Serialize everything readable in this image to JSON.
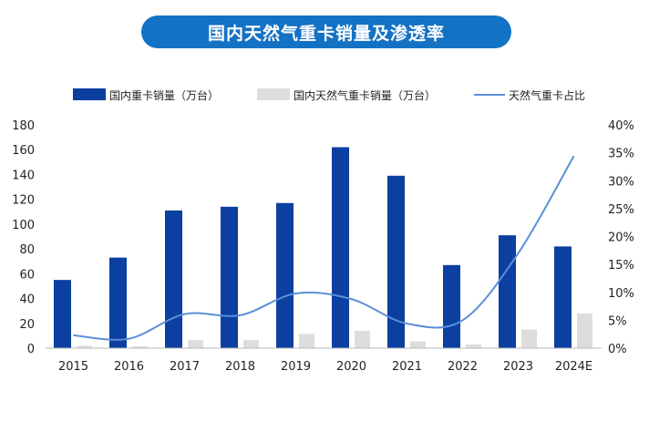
{
  "chart_data": {
    "type": "bar+line",
    "title": "国内天然气重卡销量及渗透率",
    "categories": [
      "2015",
      "2016",
      "2017",
      "2018",
      "2019",
      "2020",
      "2021",
      "2022",
      "2023",
      "2024E"
    ],
    "series": [
      {
        "name": "国内重卡销量（万台）",
        "type": "bar",
        "axis": "left",
        "color": "#0b3fa0",
        "values": [
          55,
          73,
          111,
          114,
          117,
          162,
          139,
          67,
          91,
          82
        ]
      },
      {
        "name": "国内天然气重卡销量（万台）",
        "type": "bar",
        "axis": "left",
        "color": "#dddddd",
        "values": [
          2,
          1.5,
          6.5,
          6.5,
          11.5,
          14,
          5.5,
          3,
          15,
          28
        ]
      },
      {
        "name": "天然气重卡占比",
        "type": "line",
        "axis": "right",
        "color": "#5b8fd6",
        "values": [
          2.3,
          1.7,
          6.1,
          5.9,
          9.8,
          8.8,
          4.4,
          5.0,
          17.0,
          34.4
        ]
      }
    ],
    "left_axis": {
      "ylim": [
        0,
        180
      ],
      "ticks": [
        "0",
        "20",
        "40",
        "60",
        "80",
        "100",
        "120",
        "140",
        "160",
        "180"
      ]
    },
    "right_axis": {
      "ylim": [
        0,
        40
      ],
      "ticks": [
        "0%",
        "5%",
        "10%",
        "15%",
        "20%",
        "25%",
        "30%",
        "35%",
        "40%"
      ]
    },
    "legend_position": "top"
  }
}
